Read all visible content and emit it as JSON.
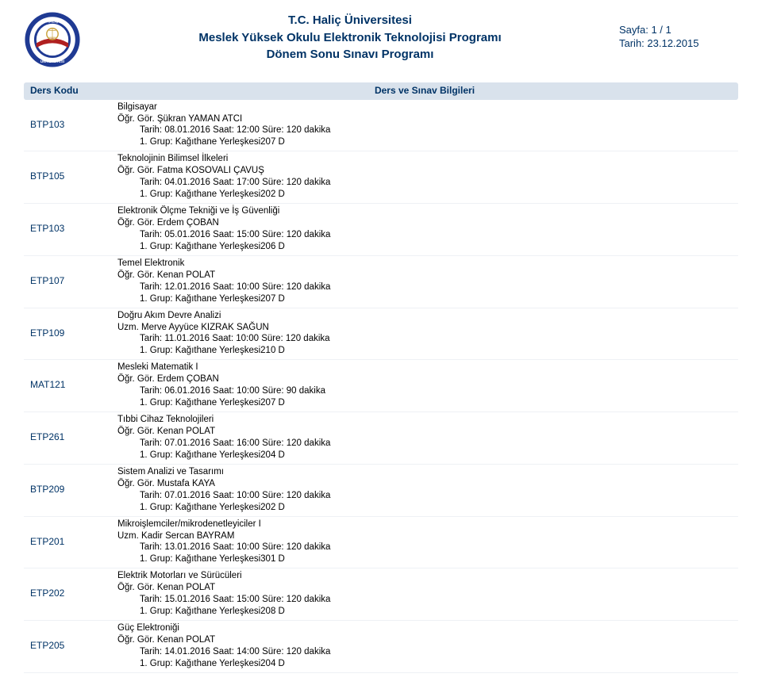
{
  "header": {
    "institution": "T.C. Haliç Üniversitesi",
    "program": "Meslek Yüksek Okulu Elektronik Teknolojisi Programı",
    "exam": "Dönem Sonu Sınavı Programı",
    "page_label": "Sayfa: 1 / 1",
    "date_label": "Tarih: 23.12.2015"
  },
  "logo": {
    "outer_text_top": "HALİÇ",
    "outer_text_bottom": "ÜNİVERSİTESİ",
    "band_text": "İSTANBUL",
    "ring_color": "#1f3a93",
    "gold_color": "#c9a23a",
    "band_color": "#b02020",
    "white": "#ffffff"
  },
  "columns": {
    "code": "Ders Kodu",
    "info": "Ders ve Sınav Bilgileri"
  },
  "rows": [
    {
      "code": "BTP103",
      "title": "Bilgisayar",
      "instructor": "Öğr. Gör. Şükran YAMAN ATCI",
      "datetime": "Tarih: 08.01.2016 Saat: 12:00   Süre: 120 dakika",
      "location": "1. Grup: Kağıthane Yerleşkesi207 D"
    },
    {
      "code": "BTP105",
      "title": "Teknolojinin Bilimsel İlkeleri",
      "instructor": "Öğr. Gör. Fatma KOSOVALI ÇAVUŞ",
      "datetime": "Tarih: 04.01.2016 Saat: 17:00   Süre: 120 dakika",
      "location": "1. Grup: Kağıthane Yerleşkesi202 D"
    },
    {
      "code": "ETP103",
      "title": "Elektronik Ölçme Tekniği ve İş Güvenliği",
      "instructor": "Öğr. Gör. Erdem ÇOBAN",
      "datetime": "Tarih: 05.01.2016 Saat: 15:00   Süre: 120 dakika",
      "location": "1. Grup: Kağıthane Yerleşkesi206 D"
    },
    {
      "code": "ETP107",
      "title": "Temel Elektronik",
      "instructor": "Öğr. Gör. Kenan POLAT",
      "datetime": "Tarih: 12.01.2016 Saat: 10:00   Süre: 120 dakika",
      "location": "1. Grup: Kağıthane Yerleşkesi207 D"
    },
    {
      "code": "ETP109",
      "title": "Doğru Akım Devre Analizi",
      "instructor": "Uzm. Merve Ayyüce KIZRAK SAĞUN",
      "datetime": "Tarih: 11.01.2016 Saat: 10:00   Süre: 120 dakika",
      "location": "1. Grup: Kağıthane Yerleşkesi210 D"
    },
    {
      "code": "MAT121",
      "title": "Mesleki Matematik I",
      "instructor": "Öğr. Gör. Erdem ÇOBAN",
      "datetime": "Tarih: 06.01.2016 Saat: 10:00   Süre: 90 dakika",
      "location": "1. Grup: Kağıthane Yerleşkesi207 D"
    },
    {
      "code": "ETP261",
      "title": "Tıbbi Cihaz Teknolojileri",
      "instructor": "Öğr. Gör. Kenan POLAT",
      "datetime": "Tarih: 07.01.2016 Saat: 16:00   Süre: 120 dakika",
      "location": "1. Grup: Kağıthane Yerleşkesi204 D"
    },
    {
      "code": "BTP209",
      "title": "Sistem Analizi ve Tasarımı",
      "instructor": "Öğr. Gör. Mustafa KAYA",
      "datetime": "Tarih: 07.01.2016 Saat: 10:00   Süre: 120 dakika",
      "location": "1. Grup: Kağıthane Yerleşkesi202 D"
    },
    {
      "code": "ETP201",
      "title": "Mikroişlemciler/mikrodenetleyiciler I",
      "instructor": "Uzm. Kadir Sercan BAYRAM",
      "datetime": "Tarih: 13.01.2016 Saat: 10:00   Süre: 120 dakika",
      "location": "1. Grup: Kağıthane Yerleşkesi301 D"
    },
    {
      "code": "ETP202",
      "title": "Elektrik Motorları ve Sürücüleri",
      "instructor": "Öğr. Gör. Kenan POLAT",
      "datetime": "Tarih: 15.01.2016 Saat: 15:00   Süre: 120 dakika",
      "location": "1. Grup: Kağıthane Yerleşkesi208 D"
    },
    {
      "code": "ETP205",
      "title": "Güç Elektroniği",
      "instructor": "Öğr. Gör. Kenan POLAT",
      "datetime": "Tarih: 14.01.2016 Saat: 14:00   Süre: 120 dakika",
      "location": "1. Grup: Kağıthane Yerleşkesi204 D"
    }
  ]
}
